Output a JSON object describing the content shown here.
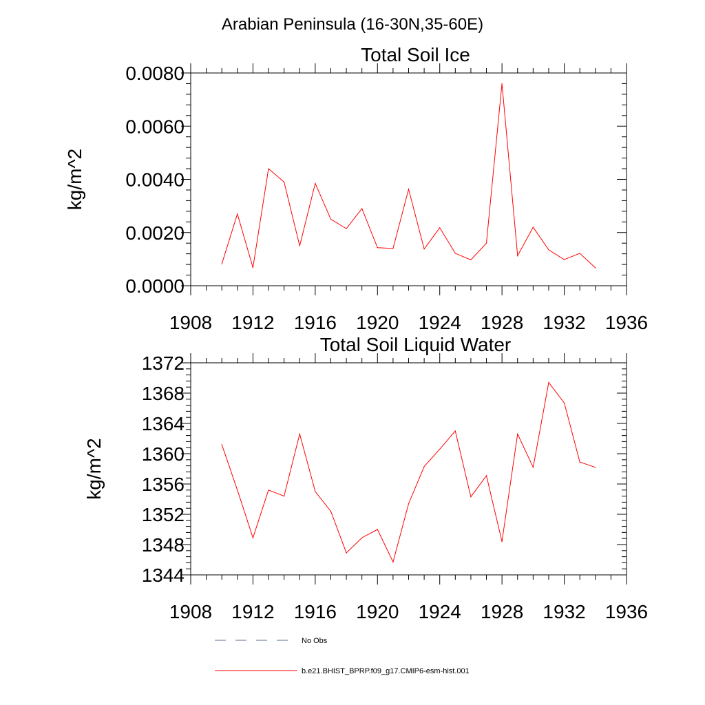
{
  "figure": {
    "title": "Arabian Peninsula (16-30N,35-60E)"
  },
  "chart_data": [
    {
      "type": "line",
      "title": "Total Soil Ice",
      "xlabel": "",
      "ylabel": "kg/m^2",
      "xlim": [
        1908,
        1936
      ],
      "ylim": [
        0,
        0.008
      ],
      "xticks": [
        1908,
        1912,
        1916,
        1920,
        1924,
        1928,
        1932,
        1936
      ],
      "yticks": [
        0,
        0.002,
        0.004,
        0.006,
        0.008
      ],
      "ytick_labels": [
        "0.0000",
        "0.0020",
        "0.0040",
        "0.0060",
        "0.0080"
      ],
      "grid": false,
      "series": [
        {
          "name": "b.e21.BHIST_BPRP.f09_g17.CMIP6-esm-hist.001",
          "color": "#ff0000",
          "x": [
            1910,
            1911,
            1912,
            1913,
            1914,
            1915,
            1916,
            1917,
            1918,
            1919,
            1920,
            1921,
            1922,
            1923,
            1924,
            1925,
            1926,
            1927,
            1928,
            1929,
            1930,
            1931,
            1932,
            1933,
            1934
          ],
          "y": [
            0.00082,
            0.0027,
            0.00068,
            0.0044,
            0.0039,
            0.0015,
            0.00385,
            0.0025,
            0.00215,
            0.0029,
            0.00143,
            0.0014,
            0.00363,
            0.00138,
            0.00218,
            0.00122,
            0.00097,
            0.0016,
            0.0076,
            0.00113,
            0.0022,
            0.00135,
            0.00098,
            0.00122,
            0.00067
          ]
        }
      ]
    },
    {
      "type": "line",
      "title": "Total Soil Liquid Water",
      "xlabel": "",
      "ylabel": "kg/m^2",
      "xlim": [
        1908,
        1936
      ],
      "ylim": [
        1344,
        1372
      ],
      "xticks": [
        1908,
        1912,
        1916,
        1920,
        1924,
        1928,
        1932,
        1936
      ],
      "yticks": [
        1344,
        1348,
        1352,
        1356,
        1360,
        1364,
        1368,
        1372
      ],
      "ytick_labels": [
        "1344",
        "1348",
        "1352",
        "1356",
        "1360",
        "1364",
        "1368",
        "1372"
      ],
      "grid": false,
      "series": [
        {
          "name": "b.e21.BHIST_BPRP.f09_g17.CMIP6-esm-hist.001",
          "color": "#ff0000",
          "x": [
            1910,
            1911,
            1912,
            1913,
            1914,
            1915,
            1916,
            1917,
            1918,
            1919,
            1920,
            1921,
            1922,
            1923,
            1924,
            1925,
            1926,
            1927,
            1928,
            1929,
            1930,
            1931,
            1932,
            1933,
            1934
          ],
          "y": [
            1361.2,
            1355.2,
            1348.9,
            1355.2,
            1354.4,
            1362.6,
            1355.0,
            1352.4,
            1346.9,
            1348.9,
            1350.0,
            1345.7,
            1353.4,
            1358.3,
            1360.6,
            1363.0,
            1354.3,
            1357.1,
            1348.4,
            1362.6,
            1358.2,
            1369.4,
            1366.7,
            1358.9,
            1358.2
          ]
        }
      ]
    }
  ],
  "legend": {
    "placement": "bottom",
    "entries": [
      {
        "label": "No Obs",
        "style": "dashed",
        "color": "#5a6e8c"
      },
      {
        "label": "b.e21.BHIST_BPRP.f09_g17.CMIP6-esm-hist.001",
        "style": "solid",
        "color": "#ff0000"
      }
    ]
  }
}
